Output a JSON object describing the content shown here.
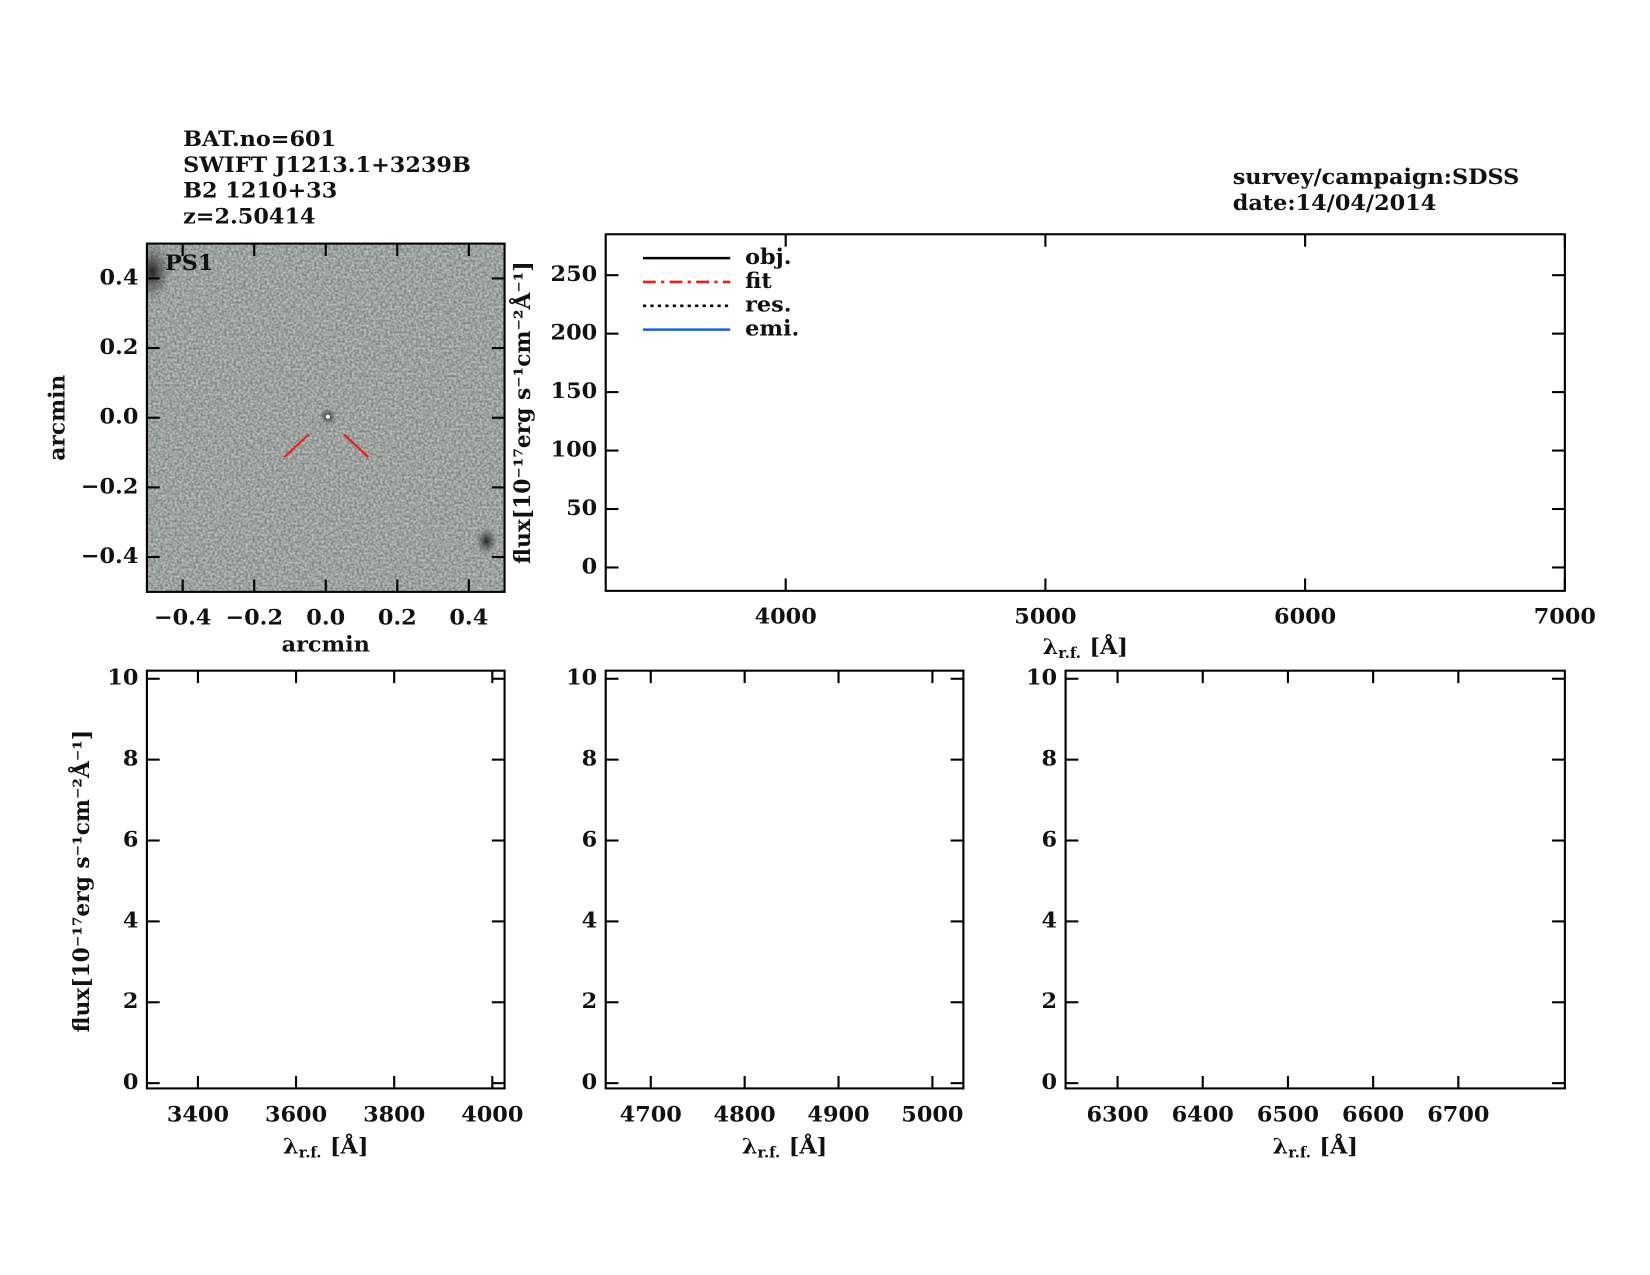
{
  "header": {
    "lines": [
      "BAT.no=601",
      "SWIFT J1213.1+3239B",
      "B2 1210+33",
      "z=2.50414"
    ],
    "survey": [
      "survey/campaign:SDSS",
      "date:14/04/2014"
    ]
  },
  "chart_data": [
    {
      "type": "image",
      "xlabel": "arcmin",
      "ylabel": "arcmin",
      "annotation": "PS1",
      "xlim": [
        -0.5,
        0.5
      ],
      "ylim": [
        -0.5,
        0.5
      ],
      "xticks": [
        {
          "value": -0.4,
          "label": "−0.4"
        },
        {
          "value": -0.2,
          "label": "−0.2"
        },
        {
          "value": 0,
          "label": "0.0"
        },
        {
          "value": 0.2,
          "label": "0.2"
        },
        {
          "value": 0.4,
          "label": "0.4"
        }
      ],
      "yticks": [
        {
          "value": -0.4,
          "label": "−0.4"
        },
        {
          "value": -0.2,
          "label": "−0.2"
        },
        {
          "value": 0,
          "label": "0.0"
        },
        {
          "value": 0.2,
          "label": "0.2"
        },
        {
          "value": 0.4,
          "label": "0.4"
        }
      ]
    },
    {
      "type": "line",
      "ylabel": "flux[10⁻¹⁷erg s⁻¹cm⁻²Å⁻¹]",
      "xlabel": {
        "symbol": "λ",
        "subscript": "r.f.",
        "unit": "[Å]"
      },
      "xlim": [
        3307,
        7000
      ],
      "ylim": [
        -20,
        285
      ],
      "xticks": [
        4000,
        5000,
        6000,
        7000
      ],
      "yticks": [
        0,
        50,
        100,
        150,
        200,
        250
      ],
      "series": [
        {
          "name": "obj.",
          "color": "#000000",
          "dash": "solid",
          "values": []
        },
        {
          "name": "fit",
          "color": "#e8201c",
          "dash": "dashdot",
          "values": []
        },
        {
          "name": "res.",
          "color": "#000000",
          "dash": "dotted",
          "values": []
        },
        {
          "name": "emi.",
          "color": "#1f5fd6",
          "dash": "solid",
          "values": []
        }
      ]
    },
    {
      "type": "line",
      "ylabel": "flux[10⁻¹⁷erg s⁻¹cm⁻²Å⁻¹]",
      "xlabel": {
        "symbol": "λ",
        "subscript": "r.f.",
        "unit": "[Å]"
      },
      "xlim": [
        3296,
        4025
      ],
      "ylim": [
        -0.13,
        10.2
      ],
      "xticks": [
        3400,
        3600,
        3800,
        4000
      ],
      "yticks": [
        0,
        2,
        4,
        6,
        8,
        10
      ]
    },
    {
      "type": "line",
      "xlabel": {
        "symbol": "λ",
        "subscript": "r.f.",
        "unit": "[Å]"
      },
      "xlim": [
        4652,
        5033
      ],
      "ylim": [
        -0.13,
        10.2
      ],
      "xticks": [
        4700,
        4800,
        4900,
        5000
      ],
      "yticks": [
        0,
        2,
        4,
        6,
        8,
        10
      ]
    },
    {
      "type": "line",
      "xlabel": {
        "symbol": "λ",
        "subscript": "r.f.",
        "unit": "[Å]"
      },
      "xlim": [
        6239,
        6825
      ],
      "ylim": [
        -0.13,
        10.2
      ],
      "xticks": [
        6300,
        6400,
        6500,
        6600,
        6700
      ],
      "yticks": [
        0,
        2,
        4,
        6,
        8,
        10
      ]
    }
  ]
}
